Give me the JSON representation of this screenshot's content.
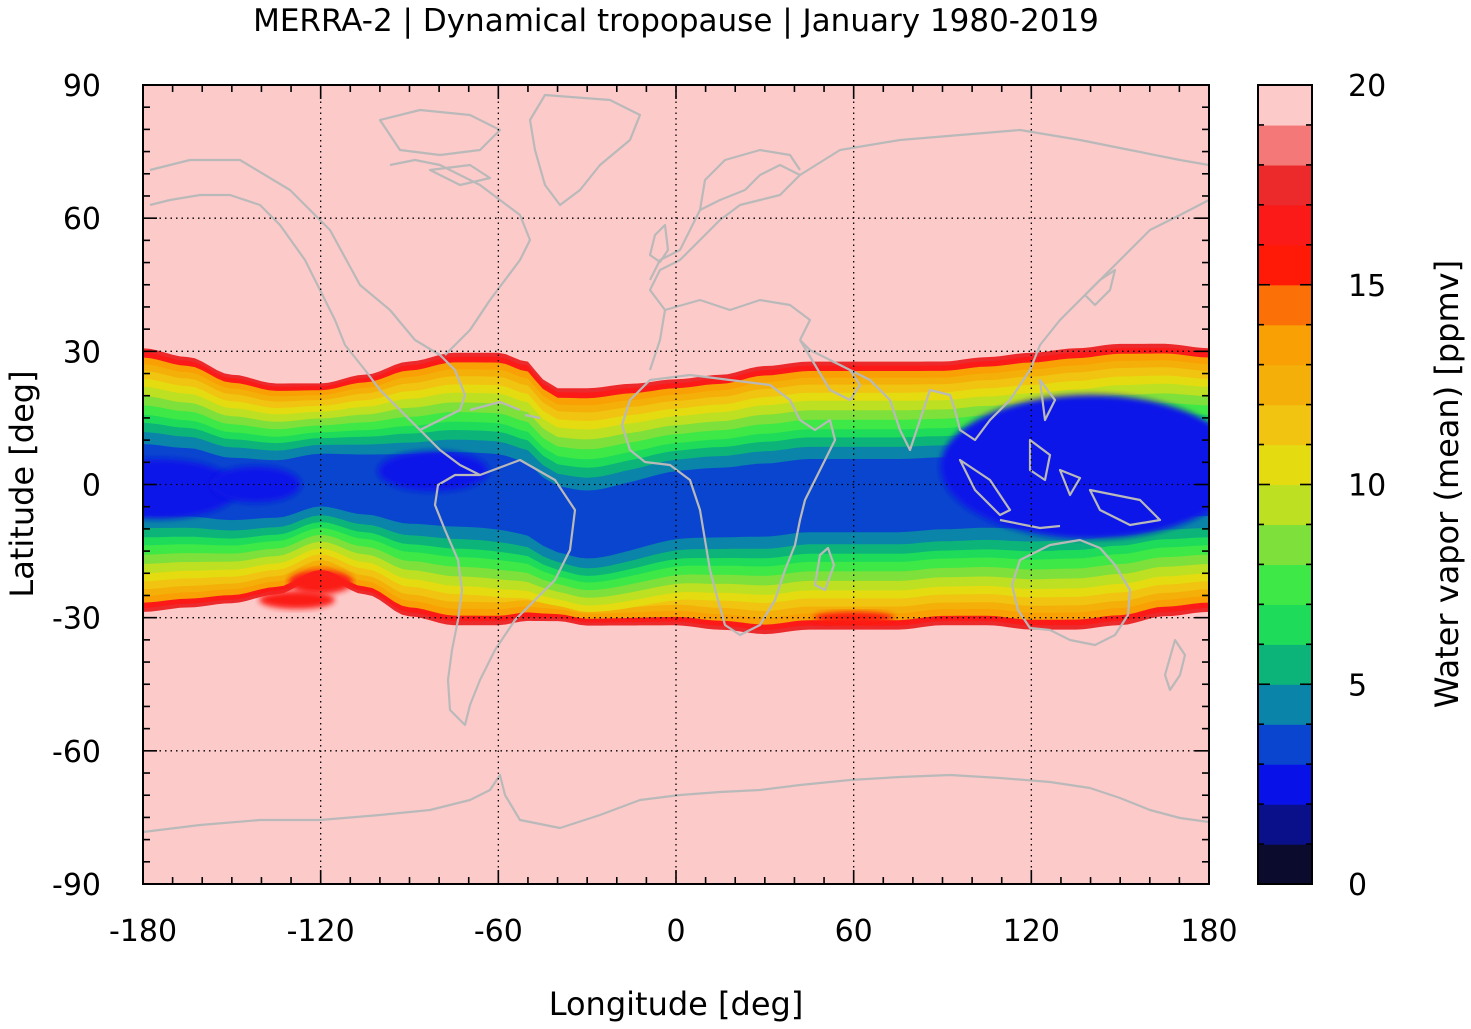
{
  "chart_data": {
    "type": "heatmap",
    "title": "MERRA-2 | Dynamical tropopause | January 1980-2019",
    "xlabel": "Longitude [deg]",
    "ylabel": "Latitude [deg]",
    "colorbar_label": "Water vapor (mean) [ppmv]",
    "xlim": [
      -180,
      180
    ],
    "ylim": [
      -90,
      90
    ],
    "x_ticks": [
      -180,
      -120,
      -60,
      0,
      60,
      120,
      180
    ],
    "y_ticks": [
      90,
      60,
      30,
      0,
      -30,
      -60,
      -90
    ],
    "x_tick_labels": [
      "-180",
      "-120",
      "-60",
      "0",
      "60",
      "120",
      "180"
    ],
    "y_tick_labels": [
      "90",
      "60",
      "30",
      "0",
      "-30",
      "-60",
      "-90"
    ],
    "colorbar_range": [
      0,
      20
    ],
    "colorbar_ticks": [
      0,
      5,
      10,
      15,
      20
    ],
    "colorbar_tick_labels": [
      "0",
      "5",
      "10",
      "15",
      "20"
    ],
    "grid": true,
    "coastlines": true,
    "colorbar_colors": [
      "#0b0b2e",
      "#0a0f8a",
      "#0812e8",
      "#0a45cf",
      "#0a84a8",
      "#0db47a",
      "#1edc5a",
      "#3ee846",
      "#7ee03a",
      "#bde022",
      "#e4dc10",
      "#f0c410",
      "#f4b008",
      "#f8a004",
      "#fc7008",
      "#ff1a08",
      "#fb1a18",
      "#ec2a2c",
      "#f47878",
      "#fdcaca"
    ],
    "background_value_color": "#fdcaca",
    "band_profile": {
      "longitude": [
        -180,
        -165,
        -150,
        -135,
        -120,
        -105,
        -90,
        -75,
        -60,
        -50,
        -45,
        -40,
        -30,
        -15,
        0,
        15,
        30,
        45,
        60,
        75,
        90,
        105,
        120,
        135,
        150,
        165,
        180
      ],
      "northern_edge_lat": [
        31,
        29,
        25,
        23,
        23,
        25,
        28,
        30,
        30,
        28,
        24,
        22,
        22,
        23,
        24,
        25,
        27,
        28,
        28,
        28,
        28,
        29,
        30,
        31,
        32,
        32,
        31
      ],
      "southern_edge_lat": [
        -29,
        -28,
        -27,
        -25,
        -21,
        -25,
        -30,
        -32,
        -32,
        -31,
        -31,
        -31,
        -32,
        -32,
        -32,
        -33,
        -34,
        -33,
        -33,
        -33,
        -32,
        -32,
        -33,
        -33,
        -32,
        -30,
        -29
      ]
    }
  }
}
